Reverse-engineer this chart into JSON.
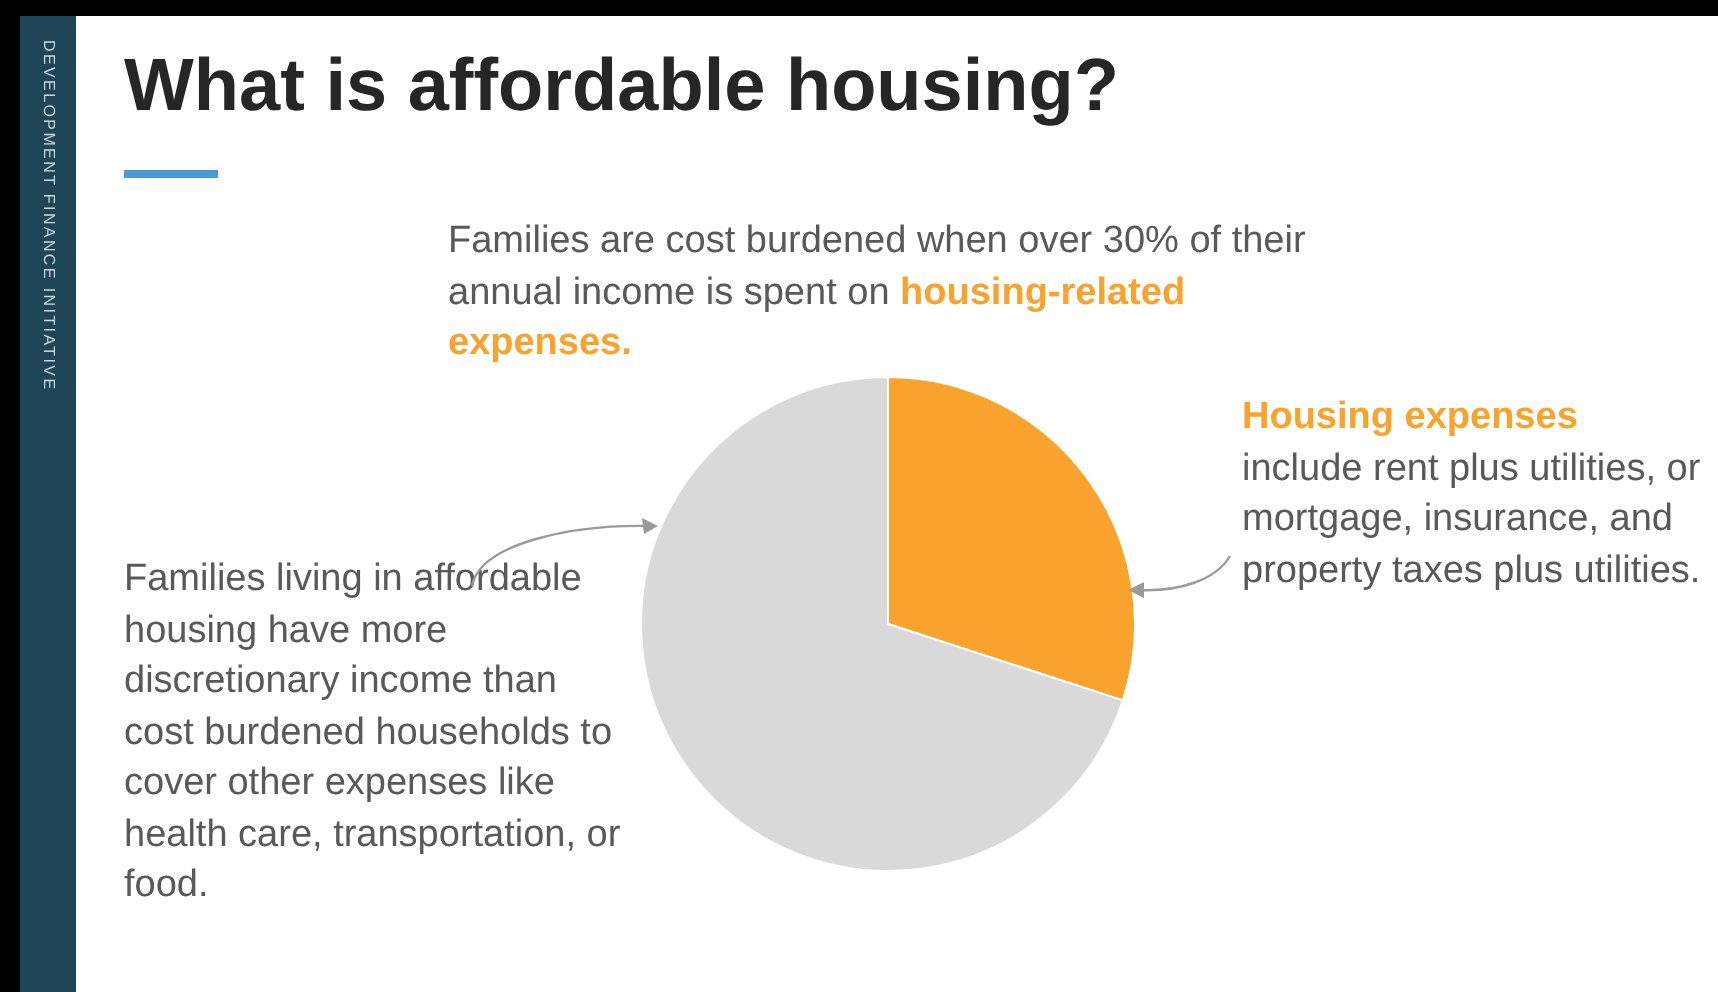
{
  "chart_data": {
    "type": "pie",
    "title": "What is affordable housing?",
    "subtitle": "Families are cost burdened when over 30% of their annual income is spent on",
    "categories": [
      null,
      null
    ],
    "values": [
      30,
      70
    ],
    "colors": [
      "#f9a32f",
      "#d9d9d9"
    ],
    "legend": false,
    "annotations": [
      "housing-related expenses.",
      "Housing expenses",
      "include rent plus utilities, or mortgage, insurance, and property taxes plus utilities.",
      "Families living in affordable housing have more discretionary income than cost burdened households to cover other expenses like health care, transportation, or food.",
      "DEVELOPMENT FINANCE INITIATIVE"
    ]
  }
}
